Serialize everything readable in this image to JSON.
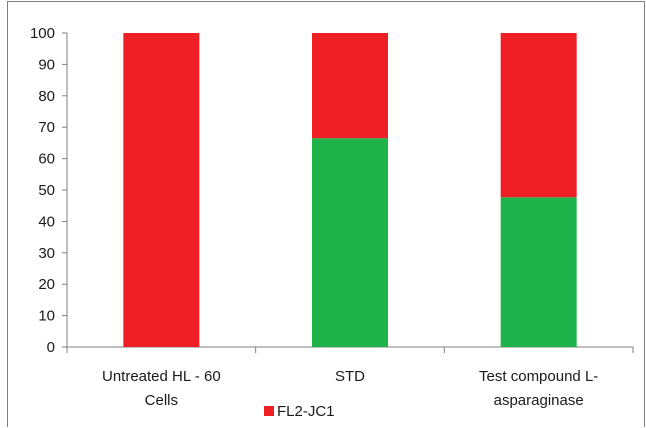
{
  "chart_data": {
    "type": "bar",
    "stacked": true,
    "categories": [
      [
        "Untreated HL - 60",
        "Cells"
      ],
      [
        "STD"
      ],
      [
        "Test compound L-",
        "asparaginase"
      ]
    ],
    "series": [
      {
        "name": "",
        "color": "#1eb34b",
        "values": [
          0,
          66.5,
          47.7
        ]
      },
      {
        "name": "FL2-JC1",
        "color": "#ee1f25",
        "values": [
          100,
          33.5,
          52.3
        ]
      }
    ],
    "yticks": [
      0,
      10,
      20,
      30,
      40,
      50,
      60,
      70,
      80,
      90,
      100
    ],
    "ylim": [
      0,
      100
    ],
    "grid": false,
    "legend": {
      "position": "bottom",
      "entries": [
        "FL2-JC1"
      ]
    }
  }
}
